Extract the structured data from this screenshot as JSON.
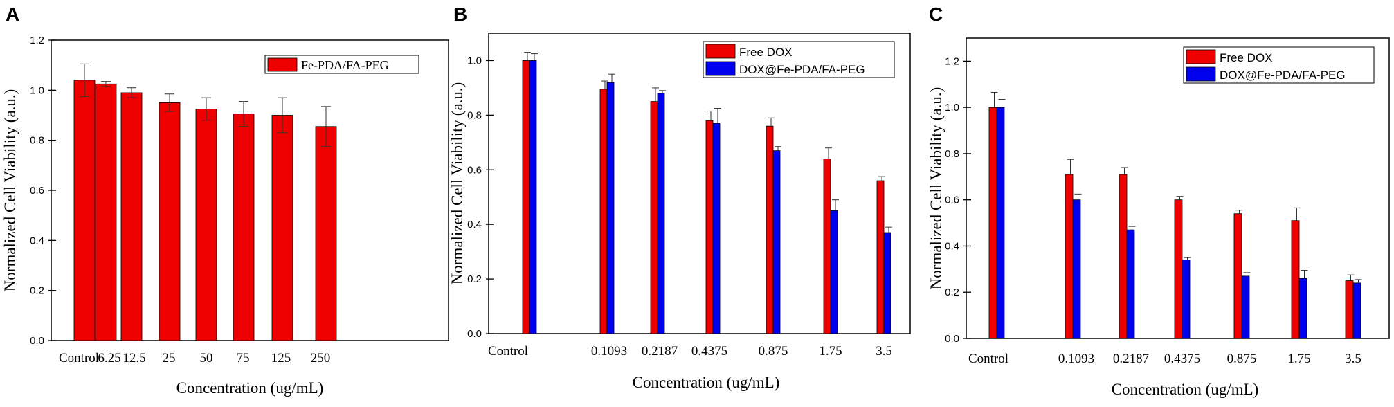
{
  "colors": {
    "red": "#ee0000",
    "blue": "#0000ee",
    "axis": "#000000"
  },
  "chart_data": [
    {
      "panel": "A",
      "type": "bar",
      "xlabel": "Concentration (ug/mL)",
      "ylabel": "Normalized Cell Viability (a.u.)",
      "ylim": [
        0,
        1.2
      ],
      "yticks": [
        "0.0",
        "0.2",
        "0.4",
        "0.6",
        "0.8",
        "1.0",
        "1.2"
      ],
      "categories": [
        "Control",
        "6.25",
        "12.5",
        "25",
        "50",
        "75",
        "125",
        "250"
      ],
      "legend_position": "top-right",
      "series": [
        {
          "name": "Fe-PDA/FA-PEG",
          "color": "#ee0000",
          "values": [
            1.04,
            1.025,
            0.99,
            0.95,
            0.925,
            0.905,
            0.9,
            0.855
          ],
          "errors": [
            0.065,
            0.01,
            0.02,
            0.035,
            0.045,
            0.05,
            0.07,
            0.08
          ]
        }
      ]
    },
    {
      "panel": "B",
      "type": "bar",
      "xlabel": "Concentration (ug/mL)",
      "ylabel": "Normalized Cell Viability (a.u.)",
      "ylim": [
        0,
        1.1
      ],
      "yticks": [
        "0.0",
        "0.2",
        "0.4",
        "0.6",
        "0.8",
        "1.0"
      ],
      "categories": [
        "Control",
        "0.1093",
        "0.2187",
        "0.4375",
        "0.875",
        "1.75",
        "3.5"
      ],
      "legend_position": "top-right",
      "series": [
        {
          "name": "Free DOX",
          "color": "#ee0000",
          "values": [
            1.0,
            0.895,
            0.85,
            0.78,
            0.76,
            0.64,
            0.56
          ],
          "errors": [
            0.03,
            0.03,
            0.05,
            0.035,
            0.03,
            0.04,
            0.015
          ]
        },
        {
          "name": "DOX@Fe-PDA/FA-PEG",
          "color": "#0000ee",
          "values": [
            1.0,
            0.92,
            0.88,
            0.77,
            0.67,
            0.45,
            0.37
          ],
          "errors": [
            0.025,
            0.03,
            0.01,
            0.055,
            0.015,
            0.04,
            0.02
          ]
        }
      ]
    },
    {
      "panel": "C",
      "type": "bar",
      "xlabel": "Concentration (ug/mL)",
      "ylabel": "Normalized Cell Viability (a.u.)",
      "ylim": [
        0,
        1.3
      ],
      "yticks": [
        "0.0",
        "0.2",
        "0.4",
        "0.6",
        "0.8",
        "1.0",
        "1.2"
      ],
      "categories": [
        "Control",
        "0.1093",
        "0.2187",
        "0.4375",
        "0.875",
        "1.75",
        "3.5"
      ],
      "legend_position": "top-right",
      "series": [
        {
          "name": "Free DOX",
          "color": "#ee0000",
          "values": [
            1.0,
            0.71,
            0.71,
            0.6,
            0.54,
            0.51,
            0.25
          ],
          "errors": [
            0.065,
            0.065,
            0.03,
            0.015,
            0.015,
            0.055,
            0.025
          ]
        },
        {
          "name": "DOX@Fe-PDA/FA-PEG",
          "color": "#0000ee",
          "values": [
            1.0,
            0.6,
            0.47,
            0.34,
            0.27,
            0.26,
            0.24
          ],
          "errors": [
            0.035,
            0.025,
            0.015,
            0.01,
            0.015,
            0.035,
            0.015
          ]
        }
      ]
    }
  ]
}
